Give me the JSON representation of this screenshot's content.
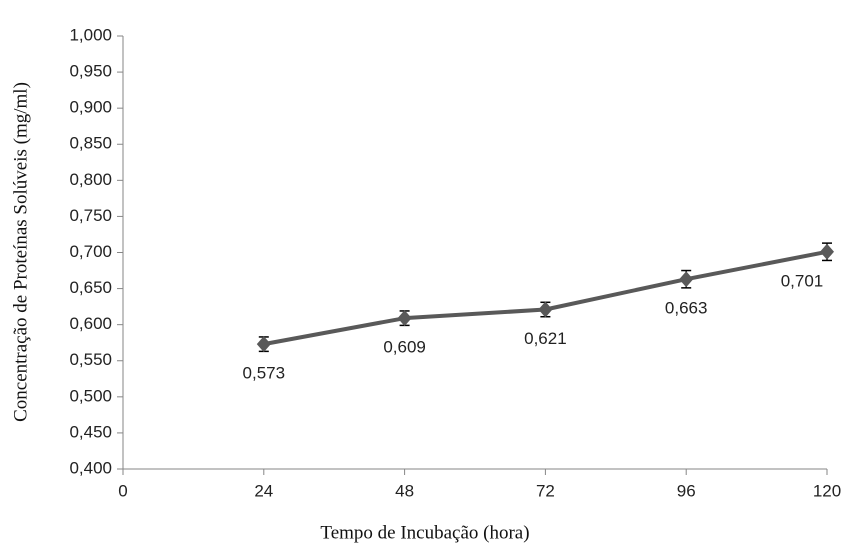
{
  "chart_data": {
    "type": "line",
    "x_label": "Tempo de Incubação (hora)",
    "y_label": "Concentração de Proteínas Solúveis (mg/ml)",
    "x": [
      24,
      48,
      72,
      96,
      120
    ],
    "series": [
      {
        "color": "#595959",
        "values": [
          0.573,
          0.609,
          0.621,
          0.663,
          0.701
        ],
        "value_labels": [
          "0,573",
          "0,609",
          "0,621",
          "0,663",
          "0,701"
        ],
        "errors": [
          0.01,
          0.01,
          0.01,
          0.012,
          0.012
        ]
      }
    ],
    "xlim": [
      0,
      120
    ],
    "xticks": [
      0,
      24,
      48,
      72,
      96,
      120
    ],
    "ylim": [
      0.4,
      1.0
    ],
    "yticks": [
      {
        "value": 0.4,
        "label": "0,400"
      },
      {
        "value": 0.45,
        "label": "0,450"
      },
      {
        "value": 0.5,
        "label": "0,500"
      },
      {
        "value": 0.55,
        "label": "0,550"
      },
      {
        "value": 0.6,
        "label": "0,600"
      },
      {
        "value": 0.65,
        "label": "0,650"
      },
      {
        "value": 0.7,
        "label": "0,700"
      },
      {
        "value": 0.75,
        "label": "0,750"
      },
      {
        "value": 0.8,
        "label": "0,800"
      },
      {
        "value": 0.85,
        "label": "0,850"
      },
      {
        "value": 0.9,
        "label": "0,900"
      },
      {
        "value": 0.95,
        "label": "0,950"
      },
      {
        "value": 1.0,
        "label": "1,000"
      }
    ],
    "grid": false
  }
}
